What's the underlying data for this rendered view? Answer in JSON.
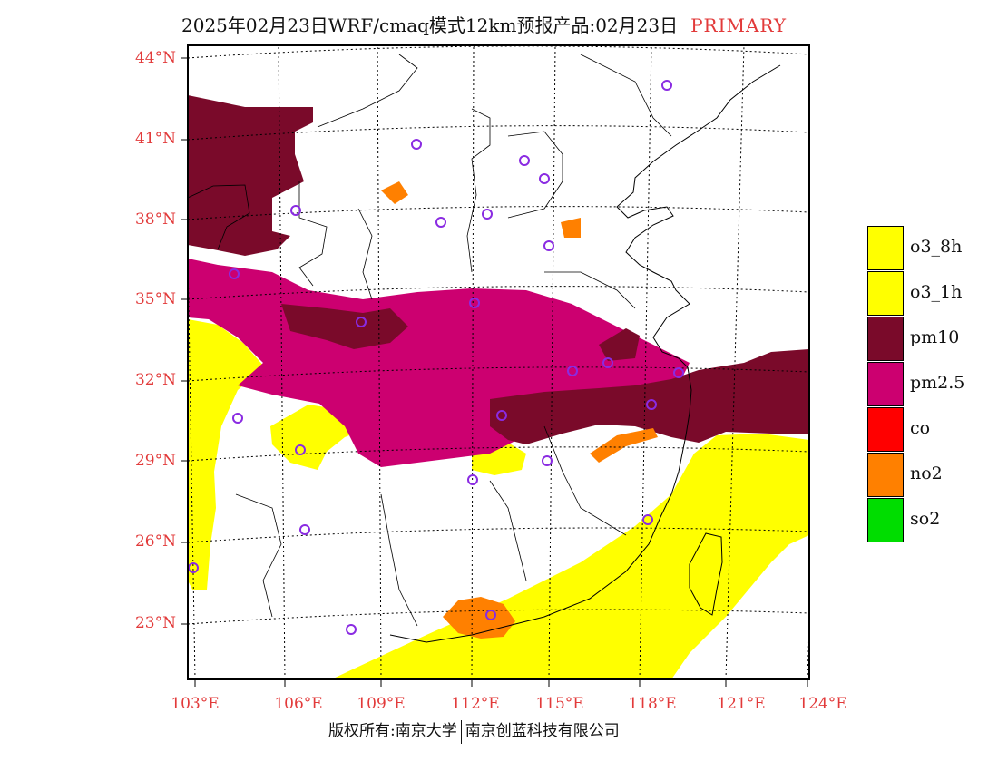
{
  "title": {
    "main": "2025年02月23日WRF/cmaq模式12km预报产品:02月23日",
    "tag": "PRIMARY"
  },
  "map": {
    "lat_labels": [
      "44°N",
      "41°N",
      "38°N",
      "35°N",
      "32°N",
      "29°N",
      "26°N",
      "23°N"
    ],
    "lon_labels": [
      "103°E",
      "106°E",
      "109°E",
      "112°E",
      "115°E",
      "118°E",
      "121°E",
      "124°E"
    ],
    "layer_colors": {
      "o3_8h": "#ffff00",
      "pm10": "#7a0a2a",
      "pm2_5": "#cc0070",
      "no2": "#ff8000",
      "site_marker": "#8a2be2",
      "grid": "#000000"
    }
  },
  "legend": {
    "items": [
      {
        "label": "o3_8h",
        "color": "#ffff00"
      },
      {
        "label": "o3_1h",
        "color": "#ffff00"
      },
      {
        "label": "pm10",
        "color": "#7a0a2a"
      },
      {
        "label": "pm2.5",
        "color": "#cc0070"
      },
      {
        "label": "co",
        "color": "#ff0000"
      },
      {
        "label": "no2",
        "color": "#ff8000"
      },
      {
        "label": "so2",
        "color": "#00dd00"
      }
    ]
  },
  "footer": {
    "left": "版权所有:南京大学",
    "right": "南京创蓝科技有限公司"
  }
}
